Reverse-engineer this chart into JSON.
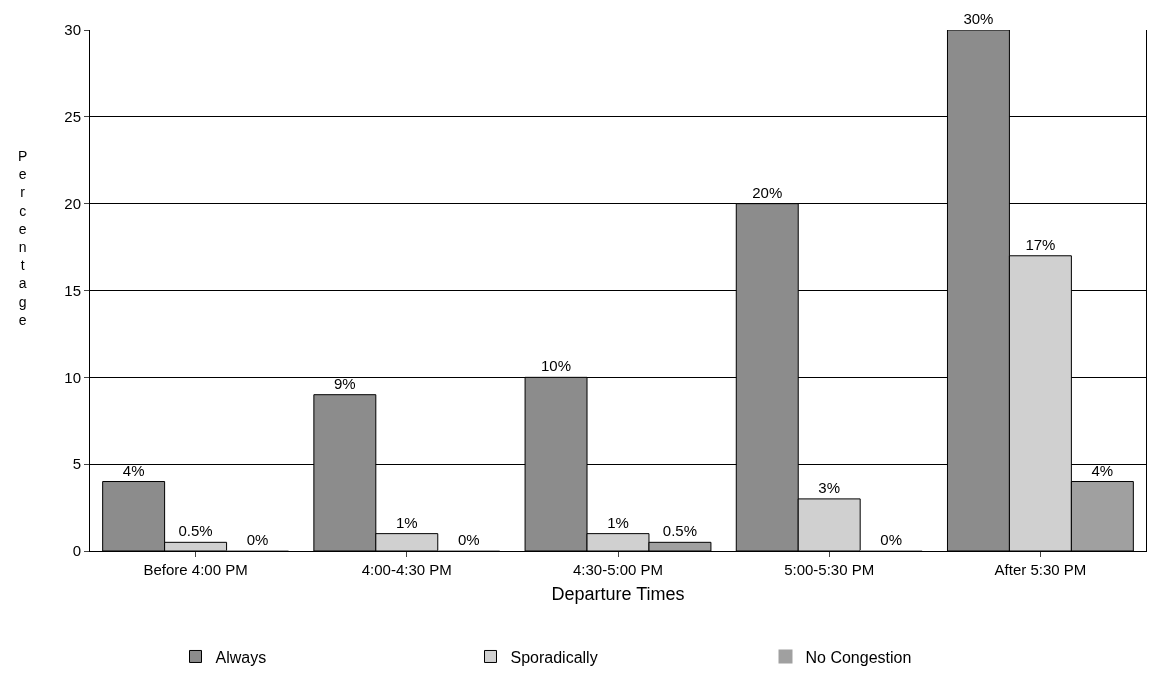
{
  "chart_data": {
    "type": "bar",
    "xlabel": "Departure Times",
    "ylabel": "Percentage",
    "categories": [
      "Before 4:00 PM",
      "4:00-4:30 PM",
      "4:30-5:00 PM",
      "5:00-5:30 PM",
      "After 5:30 PM"
    ],
    "series": [
      {
        "name": "Always",
        "color": "#8c8c8c",
        "values": [
          4,
          9,
          10,
          20,
          30
        ],
        "value_labels": [
          "4%",
          "9%",
          "10%",
          "20%",
          "30%"
        ]
      },
      {
        "name": "Sporadically",
        "color": "#d0d0d0",
        "values": [
          0.5,
          1,
          1,
          3,
          17
        ],
        "value_labels": [
          "0.5%",
          "1%",
          "1%",
          "3%",
          "17%"
        ]
      },
      {
        "name": "No Congestion",
        "color": "#a0a0a0",
        "values": [
          0,
          0,
          0.5,
          0,
          4
        ],
        "value_labels": [
          "0%",
          "0%",
          "0.5%",
          "0%",
          "4%"
        ]
      }
    ],
    "ylim": [
      0,
      30
    ],
    "yticks": [
      0,
      5,
      10,
      15,
      20,
      25,
      30
    ],
    "grid": "y",
    "legend": "bottom"
  }
}
